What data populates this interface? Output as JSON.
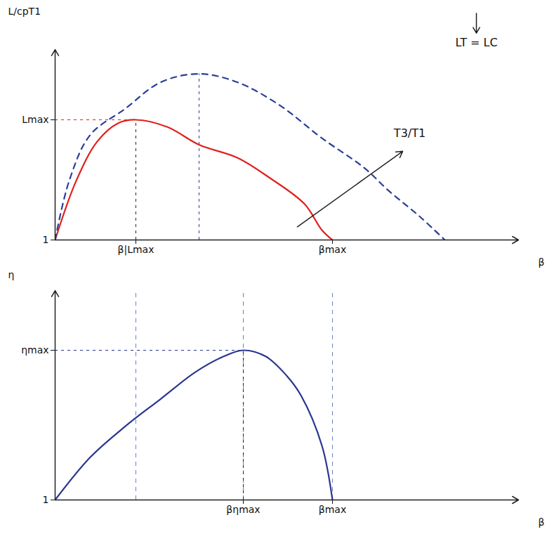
{
  "chart_data": [
    {
      "type": "line",
      "xlabel": "β",
      "ylabel": "L/cpT1",
      "xlim": [
        0,
        6.6
      ],
      "ylim": [
        1,
        3.9
      ],
      "xticks": [
        {
          "value": 1.15,
          "label": "β|Lmax"
        },
        {
          "value": 3.95,
          "label": "βmax"
        }
      ],
      "yticks": [
        1,
        {
          "value": 2.83,
          "label": "Lmax"
        }
      ],
      "series": [
        {
          "color": "#e0201b",
          "line_style": "solid",
          "x": [
            0,
            0.3,
            0.6,
            0.9,
            1.15,
            1.6,
            2.05,
            2.6,
            3.05,
            3.55,
            3.8,
            3.95
          ],
          "values": [
            1,
            1.9,
            2.5,
            2.78,
            2.83,
            2.72,
            2.45,
            2.25,
            1.95,
            1.55,
            1.15,
            1
          ]
        },
        {
          "color": "#2b3e9a",
          "line_style": "dashed",
          "x": [
            0,
            0.2,
            0.5,
            1.0,
            1.5,
            2.05,
            2.6,
            3.2,
            3.8,
            4.4,
            4.75,
            5.2,
            5.55
          ],
          "values": [
            1,
            1.9,
            2.6,
            3.0,
            3.4,
            3.53,
            3.4,
            3.05,
            2.55,
            2.1,
            1.75,
            1.35,
            1
          ]
        }
      ],
      "annotations": [
        {
          "text": "T3/T1",
          "x": 5.05,
          "y": 2.62,
          "arrow_from": [
            3.45,
            1.2
          ],
          "arrow_to": [
            4.95,
            2.35
          ]
        },
        {
          "text": "LT = LC",
          "x": 6.0,
          "y": 4.0,
          "arrow_from": [
            6.0,
            4.45
          ],
          "arrow_to": [
            6.0,
            4.15
          ]
        }
      ]
    },
    {
      "type": "line",
      "xlabel": "β",
      "ylabel": "η",
      "xlim": [
        0,
        6.6
      ],
      "ylim": [
        1,
        3.7
      ],
      "xticks": [
        {
          "value": 2.68,
          "label": "βηmax"
        },
        {
          "value": 3.95,
          "label": "βmax"
        }
      ],
      "yticks": [
        1,
        {
          "value": 2.93,
          "label": "ηmax"
        }
      ],
      "series": [
        {
          "color": "#2a3590",
          "line_style": "solid",
          "x": [
            0,
            0.5,
            1.0,
            1.5,
            2.0,
            2.4,
            2.68,
            3.0,
            3.3,
            3.5,
            3.8,
            3.95
          ],
          "values": [
            1,
            1.55,
            1.95,
            2.3,
            2.65,
            2.85,
            2.93,
            2.85,
            2.6,
            2.35,
            1.7,
            1
          ]
        }
      ],
      "annotations": []
    }
  ]
}
